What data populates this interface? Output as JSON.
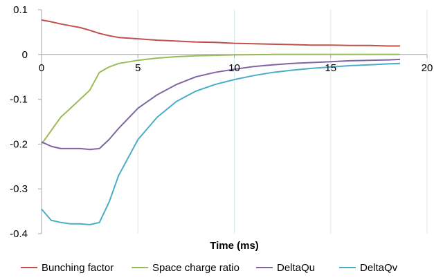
{
  "chart_data": {
    "type": "line",
    "title": "",
    "xlabel": "Time (ms)",
    "ylabel": "",
    "xlim": [
      0,
      20
    ],
    "ylim": [
      -0.4,
      0.1
    ],
    "x_ticks": [
      "0",
      "5",
      "10",
      "15",
      "20"
    ],
    "y_ticks": [
      "0.1",
      "0",
      "-0.1",
      "-0.2",
      "-0.3",
      "-0.4"
    ],
    "grid": "vertical",
    "legend_position": "bottom",
    "series": [
      {
        "name": "Bunching factor",
        "color": "#c0504d",
        "x": [
          0,
          0.5,
          1,
          1.5,
          2,
          2.5,
          3,
          3.5,
          4,
          5,
          6,
          7,
          8,
          9,
          10,
          11,
          12,
          13,
          14,
          15,
          16,
          17,
          18,
          18.6
        ],
        "y": [
          0.077,
          0.073,
          0.068,
          0.064,
          0.06,
          0.054,
          0.047,
          0.042,
          0.038,
          0.035,
          0.032,
          0.03,
          0.028,
          0.027,
          0.025,
          0.024,
          0.023,
          0.022,
          0.021,
          0.021,
          0.02,
          0.02,
          0.019,
          0.019
        ]
      },
      {
        "name": "Space charge ratio",
        "color": "#9bbb59",
        "x": [
          0,
          0.5,
          1,
          1.5,
          2,
          2.5,
          3,
          3.5,
          4,
          5,
          6,
          7,
          8,
          9,
          10,
          11,
          12,
          13,
          14,
          15,
          16,
          17,
          18,
          18.6
        ],
        "y": [
          -0.2,
          -0.17,
          -0.14,
          -0.12,
          -0.1,
          -0.08,
          -0.04,
          -0.028,
          -0.02,
          -0.013,
          -0.008,
          -0.005,
          -0.003,
          -0.002,
          -0.001,
          -0.0005,
          0,
          0,
          0,
          0,
          0,
          0,
          0,
          0
        ]
      },
      {
        "name": "DeltaQu",
        "color": "#8064a2",
        "x": [
          0,
          0.5,
          1,
          1.5,
          2,
          2.5,
          3,
          3.5,
          4,
          5,
          6,
          7,
          8,
          9,
          10,
          11,
          12,
          13,
          14,
          15,
          16,
          17,
          18,
          18.6
        ],
        "y": [
          -0.195,
          -0.205,
          -0.21,
          -0.21,
          -0.21,
          -0.212,
          -0.21,
          -0.19,
          -0.165,
          -0.12,
          -0.09,
          -0.067,
          -0.05,
          -0.04,
          -0.033,
          -0.027,
          -0.023,
          -0.02,
          -0.018,
          -0.016,
          -0.014,
          -0.013,
          -0.012,
          -0.011
        ]
      },
      {
        "name": "DeltaQv",
        "color": "#4bacc6",
        "x": [
          0,
          0.5,
          1,
          1.5,
          2,
          2.5,
          3,
          3.5,
          4,
          5,
          6,
          7,
          8,
          9,
          10,
          11,
          12,
          13,
          14,
          15,
          16,
          17,
          18,
          18.6
        ],
        "y": [
          -0.345,
          -0.37,
          -0.375,
          -0.378,
          -0.378,
          -0.38,
          -0.375,
          -0.33,
          -0.27,
          -0.19,
          -0.14,
          -0.105,
          -0.082,
          -0.067,
          -0.056,
          -0.047,
          -0.04,
          -0.035,
          -0.031,
          -0.028,
          -0.025,
          -0.023,
          -0.021,
          -0.02
        ]
      }
    ]
  }
}
